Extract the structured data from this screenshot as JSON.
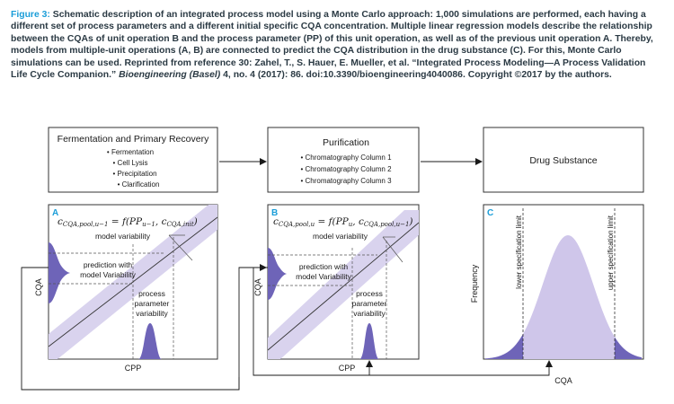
{
  "caption": {
    "label": "Figure 3:",
    "text": " Schematic description of an integrated process model using a Monte Carlo approach: 1,000 simulations are performed, each having a different set of process parameters and a different initial specific CQA concentration. Multiple linear regression models describe the relationship between the CQAs of unit operation B and the process parameter (PP) of this unit operation, as well as of the previous unit operation A. Thereby, models from multiple-unit operations (A, B) are connected to predict the CQA distribution in the drug substance (C). For this, Monte Carlo simulations can be used. Reprinted from reference 30: Zahel, T., S. Hauer, E. Mueller, et al. “Integrated Process Modeling—A Process Validation Life Cycle Companion.” ",
    "journal": "Bioengineering (Basel)",
    "tail": " 4, no. 4 (2017): 86. doi:10.3390/bioengineering4040086. Copyright ©2017 by the authors."
  },
  "boxes": {
    "fermentation": {
      "title": "Fermentation and Primary Recovery",
      "items": [
        "• Fermentation",
        "• Cell Lysis",
        "• Precipitation",
        "• Clarification"
      ]
    },
    "purification": {
      "title": "Purification",
      "items": [
        "• Chromatography Column 1",
        "• Chromatography Column 2",
        "• Chromatography Column 3"
      ]
    },
    "drug": {
      "title": "Drug Substance"
    }
  },
  "panelA": {
    "letter": "A",
    "formula": {
      "lhs": "c",
      "lhs_sub": "CQA,pool,u−1",
      "mid": " = f(PP",
      "pp_sub": "u−1",
      "sep": ", c",
      "c_sub": "CQA,init",
      "end": ")"
    },
    "model_var": "model variability",
    "prediction": [
      "prediction with",
      "model Variability"
    ],
    "ppv": [
      "process",
      "parameter",
      "variability"
    ],
    "ylabel": "CQA",
    "xlabel": "CPP"
  },
  "panelB": {
    "letter": "B",
    "formula": {
      "lhs": "c",
      "lhs_sub": "CQA,pool,u",
      "mid": " = f(PP",
      "pp_sub": "u",
      "sep": ", c",
      "c_sub": "CQA,pool,u−1",
      "end": ")"
    },
    "model_var": "model variability",
    "prediction": [
      "prediction with",
      "model Variability"
    ],
    "ppv": [
      "process",
      "parameter",
      "variability"
    ],
    "ylabel": "CQA",
    "xlabel": "CPP"
  },
  "panelC": {
    "letter": "C",
    "lsl": "lower specification limit",
    "usl": "upper specification limit",
    "ylabel": "Frequency",
    "xlabel": "CQA"
  },
  "colors": {
    "band": "#d9d3ee",
    "dist": "#bfb4e2",
    "dark": "#6e64b8",
    "label": "#1a9dd8"
  }
}
